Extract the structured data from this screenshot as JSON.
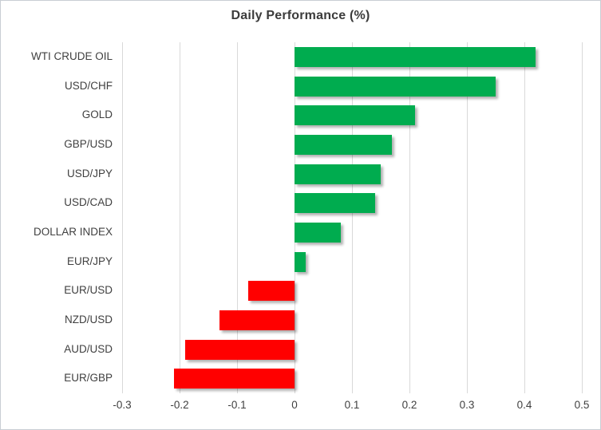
{
  "chart_data": {
    "type": "bar",
    "orientation": "horizontal",
    "title": "Daily Performance (%)",
    "categories": [
      "WTI CRUDE OIL",
      "USD/CHF",
      "GOLD",
      "GBP/USD",
      "USD/JPY",
      "USD/CAD",
      "DOLLAR INDEX",
      "EUR/JPY",
      "EUR/USD",
      "NZD/USD",
      "AUD/USD",
      "EUR/GBP"
    ],
    "values": [
      0.42,
      0.35,
      0.21,
      0.17,
      0.15,
      0.14,
      0.08,
      0.02,
      -0.08,
      -0.13,
      -0.19,
      -0.21
    ],
    "xlim": [
      -0.3,
      0.5
    ],
    "x_tick_values": [
      -0.3,
      -0.2,
      -0.1,
      0,
      0.1,
      0.2,
      0.3,
      0.4,
      0.5
    ],
    "x_tick_labels": [
      "-0.3",
      "-0.2",
      "-0.1",
      "0",
      "0.1",
      "0.2",
      "0.3",
      "0.4",
      "0.5"
    ],
    "grid": true,
    "legend": false,
    "colors": {
      "positive_bar": "#00AC4F",
      "negative_bar": "#FF0000",
      "gridline": "#D9D9D9",
      "text": "#404040",
      "title_text": "#3B3B3B",
      "background": "#FFFFFF",
      "chart_border": "#C9CED4"
    }
  }
}
